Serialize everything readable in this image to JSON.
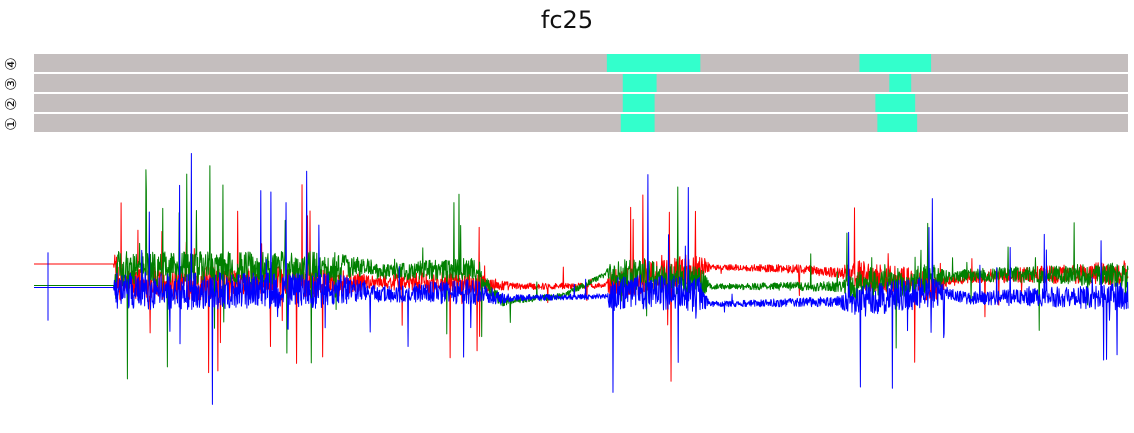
{
  "chart_data": [
    {
      "type": "heatmap",
      "title": "fc25",
      "rows": [
        {
          "label": "④",
          "segments": [
            {
              "x": [
                576,
                670
              ]
            },
            {
              "x": [
                830,
                902
              ]
            }
          ]
        },
        {
          "label": "③",
          "segments": [
            {
              "x": [
                592,
                626
              ]
            },
            {
              "x": [
                860,
                882
              ]
            }
          ]
        },
        {
          "label": "②",
          "segments": [
            {
              "x": [
                592,
                624
              ]
            },
            {
              "x": [
                846,
                886
              ]
            }
          ]
        },
        {
          "label": "①",
          "segments": [
            {
              "x": [
                590,
                624
              ]
            },
            {
              "x": [
                848,
                888
              ]
            }
          ]
        }
      ],
      "x_domain": [
        0,
        1100
      ],
      "colors": {
        "background": "#c4bebe",
        "highlight": "#33ffcc",
        "separator": "#ffffff"
      }
    },
    {
      "type": "line",
      "x_domain": [
        0,
        1100
      ],
      "y_domain": [
        -1.5,
        1.5
      ],
      "grid": false,
      "series": [
        {
          "color": "#ff0000",
          "baseline_profile": [
            [
              0,
              0.23
            ],
            [
              82,
              0.23
            ],
            [
              84,
              0.02
            ],
            [
              340,
              0.05
            ],
            [
              432,
              0.03
            ],
            [
              490,
              0.0
            ],
            [
              580,
              0.01
            ],
            [
              670,
              0.2
            ],
            [
              770,
              0.18
            ],
            [
              830,
              0.12
            ],
            [
              906,
              0.0
            ],
            [
              940,
              0.1
            ],
            [
              1100,
              0.14
            ]
          ],
          "activity_profile": [
            [
              0,
              0.0
            ],
            [
              80,
              0.0
            ],
            [
              82,
              1.0
            ],
            [
              300,
              0.9
            ],
            [
              340,
              0.4
            ],
            [
              440,
              0.7
            ],
            [
              480,
              0.2
            ],
            [
              575,
              0.15
            ],
            [
              580,
              0.85
            ],
            [
              670,
              0.9
            ],
            [
              680,
              0.15
            ],
            [
              808,
              0.3
            ],
            [
              830,
              0.85
            ],
            [
              906,
              0.85
            ],
            [
              920,
              0.3
            ],
            [
              1100,
              0.7
            ]
          ]
        },
        {
          "color": "#008000",
          "baseline_profile": [
            [
              0,
              0.01
            ],
            [
              82,
              0.01
            ],
            [
              84,
              0.18
            ],
            [
              340,
              0.2
            ],
            [
              345,
              0.15
            ],
            [
              440,
              0.18
            ],
            [
              470,
              -0.15
            ],
            [
              530,
              -0.1
            ],
            [
              580,
              0.15
            ],
            [
              670,
              0.05
            ],
            [
              680,
              0.0
            ],
            [
              830,
              0.0
            ],
            [
              906,
              0.08
            ],
            [
              940,
              0.12
            ],
            [
              1100,
              0.12
            ]
          ],
          "activity_profile": [
            [
              0,
              0.0
            ],
            [
              80,
              0.0
            ],
            [
              82,
              1.0
            ],
            [
              300,
              0.9
            ],
            [
              340,
              0.4
            ],
            [
              440,
              0.7
            ],
            [
              480,
              0.2
            ],
            [
              575,
              0.15
            ],
            [
              580,
              0.85
            ],
            [
              670,
              0.9
            ],
            [
              680,
              0.15
            ],
            [
              808,
              0.3
            ],
            [
              830,
              0.85
            ],
            [
              906,
              0.85
            ],
            [
              920,
              0.3
            ],
            [
              1100,
              0.7
            ]
          ]
        },
        {
          "color": "#0000ff",
          "baseline_profile": [
            [
              0,
              -0.01
            ],
            [
              82,
              -0.01
            ],
            [
              84,
              -0.05
            ],
            [
              340,
              -0.04
            ],
            [
              345,
              -0.08
            ],
            [
              440,
              -0.05
            ],
            [
              470,
              -0.12
            ],
            [
              575,
              -0.1
            ],
            [
              600,
              -0.05
            ],
            [
              670,
              -0.08
            ],
            [
              680,
              -0.18
            ],
            [
              830,
              -0.15
            ],
            [
              906,
              -0.05
            ],
            [
              940,
              -0.12
            ],
            [
              1100,
              -0.1
            ]
          ],
          "activity_profile": [
            [
              0,
              0.0
            ],
            [
              80,
              0.0
            ],
            [
              82,
              1.1
            ],
            [
              300,
              1.0
            ],
            [
              340,
              0.45
            ],
            [
              440,
              0.75
            ],
            [
              480,
              0.2
            ],
            [
              575,
              0.15
            ],
            [
              580,
              0.95
            ],
            [
              670,
              1.0
            ],
            [
              680,
              0.15
            ],
            [
              808,
              0.3
            ],
            [
              830,
              0.95
            ],
            [
              906,
              0.9
            ],
            [
              920,
              0.3
            ],
            [
              1100,
              0.8
            ]
          ]
        }
      ]
    }
  ]
}
